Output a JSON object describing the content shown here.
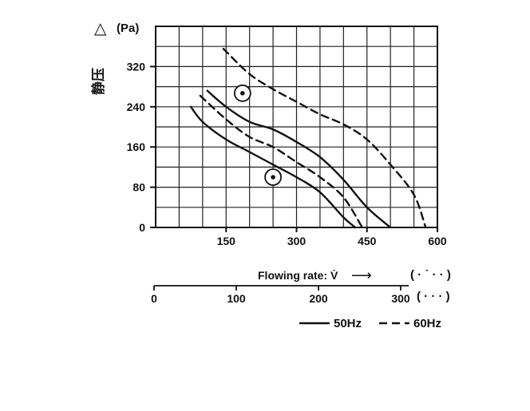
{
  "chart_data": {
    "type": "line",
    "ylabel": "静压",
    "ylabel_symbol": "△",
    "yunit": "(Pa)",
    "ylim": [
      0,
      400
    ],
    "y_ticks": [
      0,
      80,
      160,
      240,
      320
    ],
    "xlim": [
      0,
      600
    ],
    "x_ticks": [
      150,
      300,
      450,
      600
    ],
    "xlabel": "Flowing rate: V̇",
    "xlabel_arrow": "⟶",
    "x_unit_primary": "( · ˙ · · )",
    "secondary_axis": {
      "xlim": [
        0,
        340
      ],
      "ticks": [
        0,
        100,
        200,
        300
      ],
      "unit": "( · · · )"
    },
    "grid": true,
    "legend": {
      "position": "bottom-right",
      "entries": [
        {
          "label": "50Hz",
          "style": "solid"
        },
        {
          "label": "60Hz",
          "style": "dashed"
        }
      ]
    },
    "markers": [
      {
        "symbol": "⊙",
        "x": 185,
        "y": 267
      },
      {
        "symbol": "⊙",
        "x": 250,
        "y": 100
      }
    ],
    "series": [
      {
        "style": "solid",
        "x": [
          110,
          150,
          200,
          250,
          300,
          350,
          400,
          450,
          500
        ],
        "y": [
          272,
          240,
          210,
          195,
          170,
          140,
          95,
          40,
          0
        ]
      },
      {
        "style": "solid",
        "x": [
          75,
          100,
          150,
          200,
          250,
          300,
          350,
          400,
          425
        ],
        "y": [
          240,
          210,
          175,
          150,
          125,
          100,
          70,
          20,
          0
        ]
      },
      {
        "style": "dashed",
        "x": [
          145,
          150,
          200,
          250,
          300,
          350,
          400,
          450,
          500,
          550,
          575
        ],
        "y": [
          355,
          350,
          305,
          275,
          250,
          225,
          205,
          175,
          125,
          65,
          0
        ]
      },
      {
        "style": "dashed",
        "x": [
          95,
          150,
          200,
          250,
          300,
          350,
          400,
          440
        ],
        "y": [
          262,
          215,
          180,
          160,
          130,
          100,
          60,
          0
        ]
      }
    ]
  }
}
